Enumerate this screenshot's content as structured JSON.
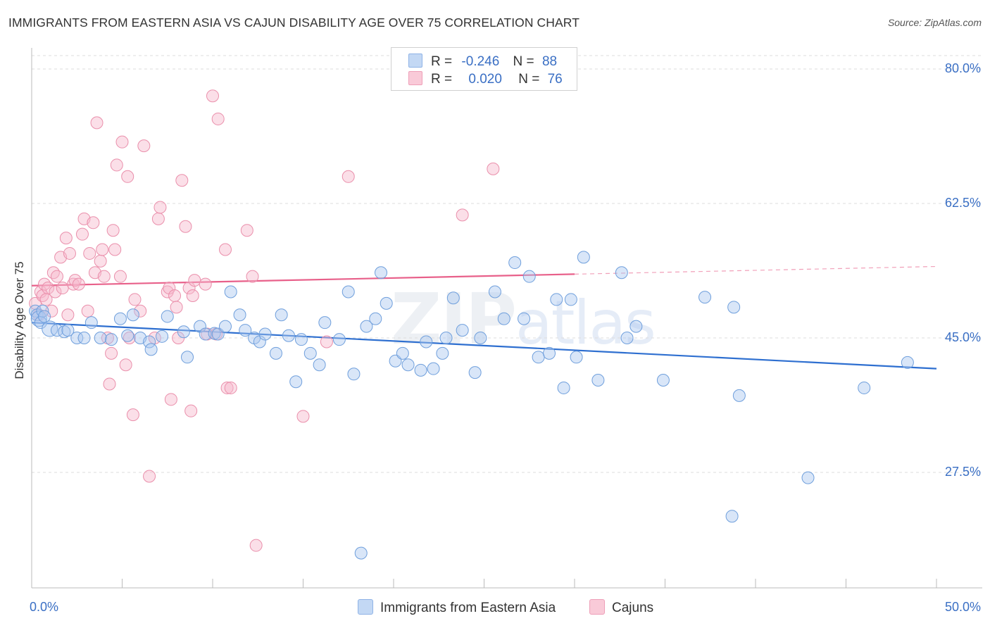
{
  "title": "IMMIGRANTS FROM EASTERN ASIA VS CAJUN DISABILITY AGE OVER 75 CORRELATION CHART",
  "source": "Source: ZipAtlas.com",
  "watermark": {
    "zip": "ZIP",
    "atlas": "atlas"
  },
  "colors": {
    "blue_fill": "#aac8f0",
    "blue_stroke": "#6f9fdc",
    "blue_line": "#2e6fd0",
    "pink_fill": "#f6b8cb",
    "pink_stroke": "#ea8fab",
    "pink_line": "#e8608a",
    "tick_text": "#3a6fc4",
    "grid": "#dddddd"
  },
  "legend": {
    "rows": [
      {
        "r_label": "R =",
        "r_value": "-0.246",
        "n_label": "N =",
        "n_value": "88"
      },
      {
        "r_label": "R =",
        "r_value": "0.020",
        "n_label": "N =",
        "n_value": "76"
      }
    ]
  },
  "chart_data": {
    "type": "scatter",
    "title": "IMMIGRANTS FROM EASTERN ASIA VS CAJUN DISABILITY AGE OVER 75 CORRELATION CHART",
    "xlabel": "",
    "ylabel": "Disability Age Over 75",
    "xlim": [
      0,
      50
    ],
    "ylim": [
      10,
      82
    ],
    "x_tick_labels": [
      "0.0%",
      "50.0%"
    ],
    "y_ticks": [
      80.0,
      62.5,
      45.0,
      27.5
    ],
    "y_tick_labels": [
      "80.0%",
      "62.5%",
      "45.0%",
      "27.5%"
    ],
    "grid": true,
    "legend_position": "top-center",
    "series": [
      {
        "name": "Immigrants from Eastern Asia",
        "r": -0.246,
        "n": 88,
        "trend": {
          "x": [
            0,
            50
          ],
          "y": [
            47.0,
            41.0
          ]
        },
        "points": [
          [
            0.2,
            48.5
          ],
          [
            0.3,
            48.0
          ],
          [
            0.4,
            47.5
          ],
          [
            0.5,
            47.0
          ],
          [
            0.6,
            48.5
          ],
          [
            0.7,
            47.8
          ],
          [
            1.0,
            46.2
          ],
          [
            1.4,
            46.0
          ],
          [
            1.8,
            45.8
          ],
          [
            2.0,
            46.0
          ],
          [
            2.5,
            45.0
          ],
          [
            2.9,
            45.0
          ],
          [
            3.3,
            47.0
          ],
          [
            3.8,
            45.0
          ],
          [
            4.4,
            44.8
          ],
          [
            4.9,
            47.5
          ],
          [
            5.3,
            45.3
          ],
          [
            5.6,
            48.0
          ],
          [
            6.0,
            45.0
          ],
          [
            6.5,
            44.5
          ],
          [
            6.6,
            43.5
          ],
          [
            7.2,
            45.2
          ],
          [
            7.5,
            47.8
          ],
          [
            8.4,
            45.8
          ],
          [
            8.6,
            42.5
          ],
          [
            9.3,
            46.5
          ],
          [
            9.6,
            45.5
          ],
          [
            10.1,
            45.6
          ],
          [
            10.3,
            45.5
          ],
          [
            10.7,
            46.5
          ],
          [
            11.0,
            51.0
          ],
          [
            11.5,
            48.0
          ],
          [
            11.8,
            46.0
          ],
          [
            12.3,
            45.0
          ],
          [
            12.6,
            44.5
          ],
          [
            12.9,
            45.5
          ],
          [
            13.5,
            43.0
          ],
          [
            13.8,
            48.0
          ],
          [
            14.2,
            45.3
          ],
          [
            14.6,
            39.3
          ],
          [
            14.9,
            44.8
          ],
          [
            15.4,
            43.0
          ],
          [
            15.9,
            41.5
          ],
          [
            16.2,
            47.0
          ],
          [
            17.0,
            44.8
          ],
          [
            17.5,
            51.0
          ],
          [
            17.8,
            40.3
          ],
          [
            18.5,
            46.5
          ],
          [
            19.0,
            47.5
          ],
          [
            19.3,
            53.5
          ],
          [
            19.6,
            49.5
          ],
          [
            20.1,
            42.0
          ],
          [
            20.5,
            43.0
          ],
          [
            20.8,
            41.5
          ],
          [
            21.5,
            40.8
          ],
          [
            21.8,
            44.5
          ],
          [
            22.2,
            41.0
          ],
          [
            22.7,
            43.0
          ],
          [
            22.9,
            45.0
          ],
          [
            23.3,
            50.2
          ],
          [
            23.8,
            46.0
          ],
          [
            24.5,
            40.5
          ],
          [
            24.8,
            45.0
          ],
          [
            25.6,
            51.0
          ],
          [
            26.1,
            47.5
          ],
          [
            26.7,
            54.8
          ],
          [
            27.2,
            47.5
          ],
          [
            27.5,
            53.0
          ],
          [
            28.0,
            42.5
          ],
          [
            28.6,
            43.0
          ],
          [
            29.0,
            50.0
          ],
          [
            29.4,
            38.5
          ],
          [
            29.8,
            50.0
          ],
          [
            30.1,
            42.5
          ],
          [
            30.5,
            55.5
          ],
          [
            31.3,
            39.5
          ],
          [
            32.6,
            53.5
          ],
          [
            32.9,
            45.0
          ],
          [
            33.4,
            46.5
          ],
          [
            34.9,
            39.5
          ],
          [
            37.2,
            50.3
          ],
          [
            38.8,
            49.0
          ],
          [
            39.1,
            37.5
          ],
          [
            38.7,
            21.8
          ],
          [
            42.9,
            26.8
          ],
          [
            46.0,
            38.5
          ],
          [
            48.4,
            41.8
          ],
          [
            18.2,
            17.0
          ]
        ]
      },
      {
        "name": "Cajuns",
        "r": 0.02,
        "n": 76,
        "trend": {
          "x": [
            0,
            30
          ],
          "y": [
            51.8,
            53.3
          ],
          "dash_x": [
            30,
            50
          ],
          "dash_y": [
            53.3,
            54.3
          ]
        },
        "points": [
          [
            0.2,
            49.5
          ],
          [
            0.4,
            48.0
          ],
          [
            0.5,
            51.0
          ],
          [
            0.6,
            50.5
          ],
          [
            0.7,
            52.0
          ],
          [
            0.8,
            50.0
          ],
          [
            0.9,
            51.5
          ],
          [
            1.1,
            48.5
          ],
          [
            1.2,
            53.5
          ],
          [
            1.3,
            51.0
          ],
          [
            1.4,
            53.0
          ],
          [
            1.6,
            55.5
          ],
          [
            1.7,
            51.5
          ],
          [
            1.9,
            58.0
          ],
          [
            2.1,
            56.0
          ],
          [
            2.3,
            52.0
          ],
          [
            2.4,
            52.5
          ],
          [
            2.6,
            52.0
          ],
          [
            2.8,
            58.5
          ],
          [
            2.9,
            60.5
          ],
          [
            3.1,
            48.5
          ],
          [
            3.2,
            56.0
          ],
          [
            3.4,
            60.0
          ],
          [
            3.5,
            53.5
          ],
          [
            3.6,
            73.0
          ],
          [
            3.8,
            55.0
          ],
          [
            3.9,
            56.5
          ],
          [
            4.0,
            53.0
          ],
          [
            4.2,
            45.0
          ],
          [
            4.3,
            39.0
          ],
          [
            4.4,
            43.0
          ],
          [
            4.5,
            59.0
          ],
          [
            4.6,
            56.5
          ],
          [
            4.7,
            67.5
          ],
          [
            4.9,
            53.0
          ],
          [
            5.0,
            70.5
          ],
          [
            5.2,
            41.5
          ],
          [
            5.3,
            66.0
          ],
          [
            5.4,
            45.0
          ],
          [
            5.6,
            35.0
          ],
          [
            5.7,
            50.0
          ],
          [
            6.0,
            48.5
          ],
          [
            6.2,
            70.0
          ],
          [
            6.5,
            27.0
          ],
          [
            7.0,
            60.5
          ],
          [
            7.1,
            62.0
          ],
          [
            7.5,
            51.0
          ],
          [
            7.6,
            51.5
          ],
          [
            7.7,
            37.0
          ],
          [
            7.9,
            50.5
          ],
          [
            8.0,
            49.0
          ],
          [
            8.1,
            45.0
          ],
          [
            8.3,
            65.5
          ],
          [
            8.5,
            59.5
          ],
          [
            8.7,
            51.5
          ],
          [
            8.8,
            35.5
          ],
          [
            8.9,
            50.5
          ],
          [
            9.0,
            52.5
          ],
          [
            9.6,
            52.0
          ],
          [
            9.7,
            45.5
          ],
          [
            10.0,
            76.5
          ],
          [
            10.3,
            73.5
          ],
          [
            10.7,
            56.5
          ],
          [
            10.8,
            38.5
          ],
          [
            11.0,
            38.5
          ],
          [
            11.9,
            59.0
          ],
          [
            12.2,
            53.0
          ],
          [
            12.4,
            18.0
          ],
          [
            15.0,
            34.8
          ],
          [
            16.3,
            44.5
          ],
          [
            17.5,
            66.0
          ],
          [
            23.8,
            61.0
          ],
          [
            25.5,
            67.0
          ],
          [
            10.2,
            45.5
          ],
          [
            6.8,
            45.0
          ],
          [
            2.0,
            48.0
          ]
        ]
      }
    ]
  },
  "bottom_legend": [
    {
      "label": "Immigrants from Eastern Asia"
    },
    {
      "label": "Cajuns"
    }
  ]
}
